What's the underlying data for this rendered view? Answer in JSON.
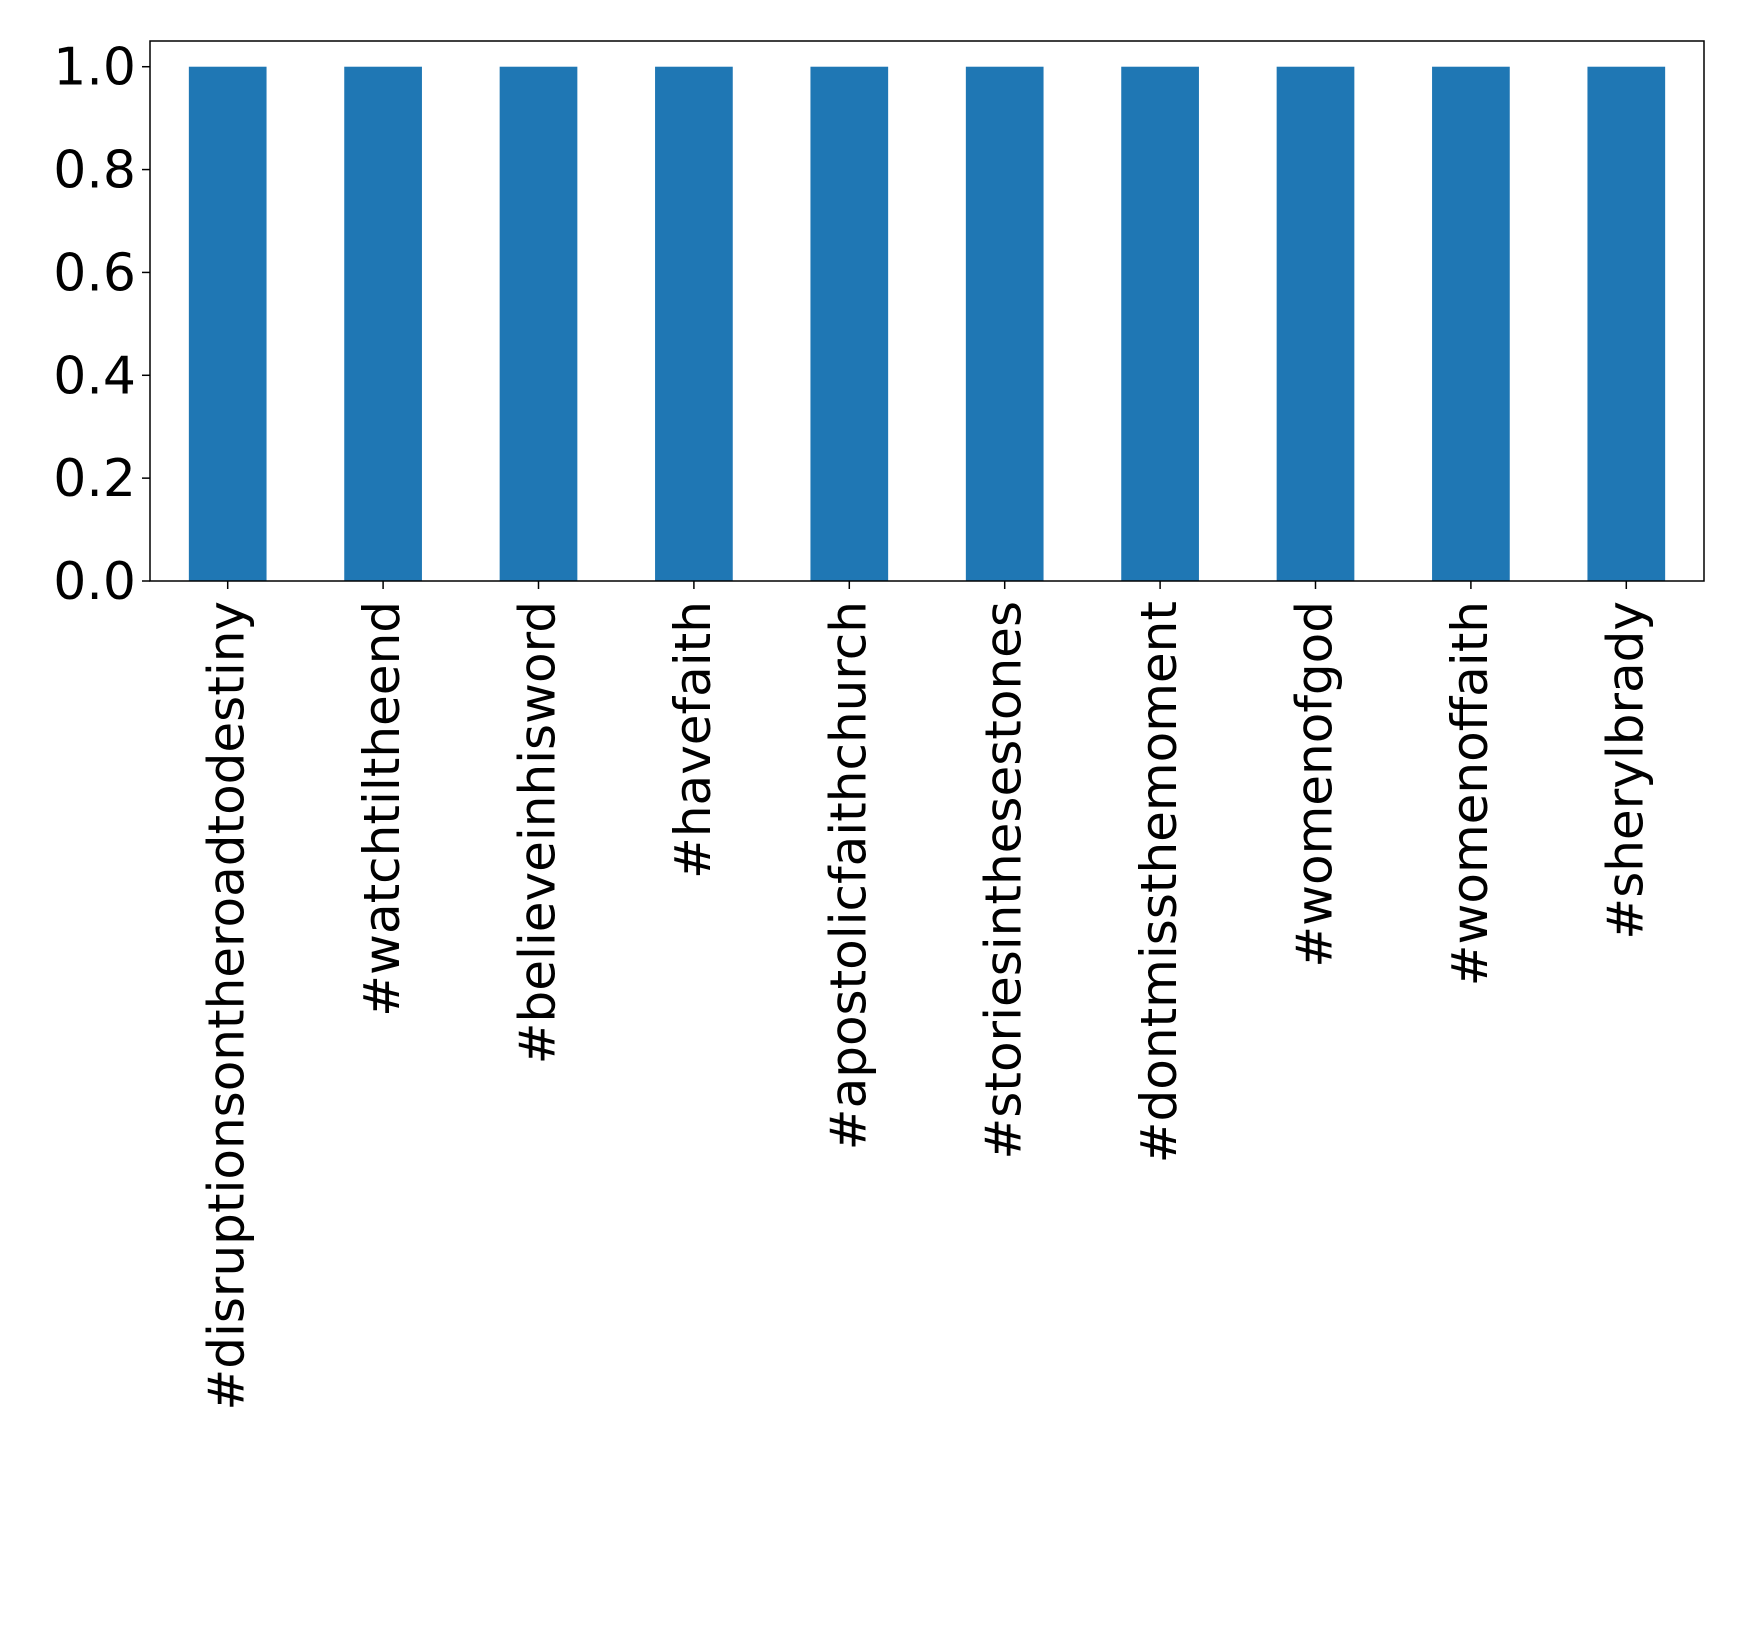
{
  "chart_data": {
    "type": "bar",
    "categories": [
      "#disruptionsontheroadtodestiny",
      "#watchtiltheend",
      "#believeinhisword",
      "#havefaith",
      "#apostolicfaithchurch",
      "#storiesinthesestones",
      "#dontmissthemoment",
      "#womenofgod",
      "#womenoffaith",
      "#sherylbrady"
    ],
    "values": [
      1.0,
      1.0,
      1.0,
      1.0,
      1.0,
      1.0,
      1.0,
      1.0,
      1.0,
      1.0
    ],
    "yticks": [
      "0.0",
      "0.2",
      "0.4",
      "0.6",
      "0.8",
      "1.0"
    ],
    "ylim": [
      0,
      1.05
    ],
    "title": "",
    "xlabel": "",
    "ylabel": "",
    "grid": false,
    "legend": "none",
    "bar_color": "#1f77b4"
  }
}
